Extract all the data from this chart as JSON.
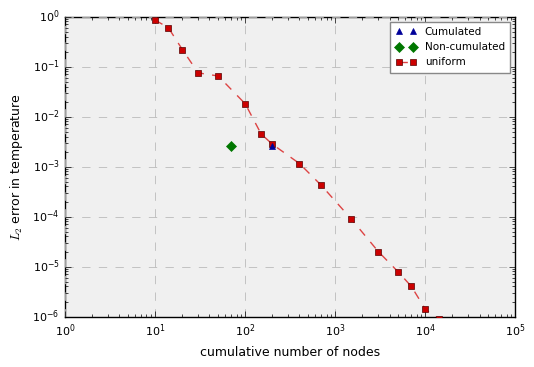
{
  "uniform_x": [
    10,
    14,
    20,
    30,
    50,
    100,
    150,
    200,
    400,
    700,
    1500,
    3000,
    5000,
    7000,
    10000,
    14000
  ],
  "uniform_y": [
    0.85,
    0.6,
    0.22,
    0.075,
    0.065,
    0.018,
    0.0045,
    0.0028,
    0.00115,
    0.00042,
    9e-05,
    2e-05,
    7.8e-06,
    4e-06,
    1.4e-06,
    9e-07
  ],
  "cumulated_x": [
    200
  ],
  "cumulated_y": [
    0.0026
  ],
  "noncumulated_x": [
    70
  ],
  "noncumulated_y": [
    0.0026
  ],
  "xlabel": "cumulative number of nodes",
  "ylabel": "$\\mathit{L}_2$ error in temperature",
  "xlim": [
    1.0,
    100000.0
  ],
  "ylim": [
    1e-06,
    1.0
  ],
  "uniform_color": "#cc0000",
  "uniform_line_color": "#dd4444",
  "cumulated_color": "#000099",
  "noncumulated_color": "#007700",
  "legend_labels": [
    "Cumulated",
    "Non-cumulated",
    "uniform"
  ],
  "grid_color": "#bbbbbb",
  "background_color": "#f0f0f0",
  "marker_edge_color": "#550000"
}
